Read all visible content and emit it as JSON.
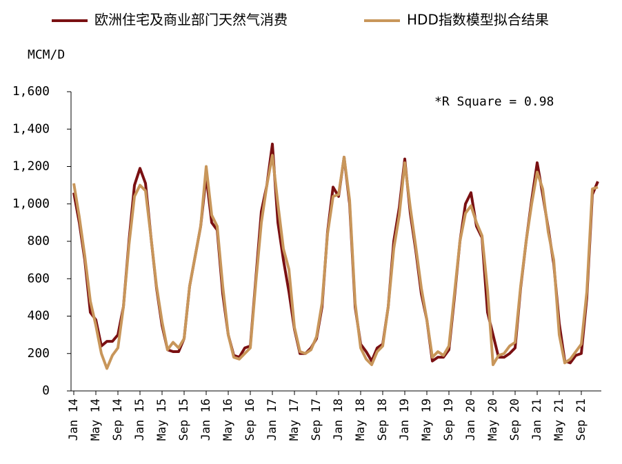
{
  "chart_data": {
    "type": "line",
    "y_label": "MCM/D",
    "annotation": "*R Square = 0.98",
    "categories": [
      "Jan 14",
      null,
      null,
      null,
      "May 14",
      null,
      null,
      null,
      "Sep 14",
      null,
      null,
      null,
      "Jan 15",
      null,
      null,
      null,
      "May 15",
      null,
      null,
      null,
      "Sep 15",
      null,
      null,
      null,
      "Jan 16",
      null,
      null,
      null,
      "May 16",
      null,
      null,
      null,
      "Sep 16",
      null,
      null,
      null,
      "Jan 17",
      null,
      null,
      null,
      "May 17",
      null,
      null,
      null,
      "Sep 17",
      null,
      null,
      null,
      "Jan 18",
      null,
      null,
      null,
      "May 18",
      null,
      null,
      null,
      "Sep 18",
      null,
      null,
      null,
      "Jan 19",
      null,
      null,
      null,
      "May 19",
      null,
      null,
      null,
      "Sep 19",
      null,
      null,
      null,
      "Jan 20",
      null,
      null,
      null,
      "May 20",
      null,
      null,
      null,
      "Sep 20",
      null,
      null,
      null,
      "Jan 21",
      null,
      null,
      null,
      "May 21",
      null,
      null,
      null,
      "Sep 21",
      null,
      null,
      null
    ],
    "series": [
      {
        "name": "欧洲住宅及商业部门天然气消费",
        "color": "#7a1012",
        "values": [
          1060,
          900,
          700,
          420,
          380,
          240,
          265,
          265,
          300,
          450,
          800,
          1100,
          1190,
          1110,
          820,
          550,
          350,
          220,
          210,
          210,
          280,
          560,
          720,
          880,
          1150,
          900,
          860,
          520,
          300,
          190,
          180,
          230,
          240,
          600,
          960,
          1100,
          1320,
          900,
          700,
          530,
          330,
          200,
          200,
          230,
          280,
          450,
          850,
          1090,
          1040,
          1250,
          1000,
          450,
          250,
          210,
          160,
          230,
          250,
          450,
          800,
          980,
          1240,
          950,
          750,
          520,
          380,
          160,
          180,
          180,
          220,
          500,
          800,
          1000,
          1060,
          880,
          820,
          420,
          300,
          180,
          180,
          200,
          230,
          550,
          800,
          1020,
          1220,
          1050,
          870,
          680,
          360,
          160,
          150,
          190,
          200,
          500,
          1050,
          1120
        ]
      },
      {
        "name": "HDD指数模型拟合结果",
        "color": "#c8965a",
        "values": [
          1110,
          930,
          720,
          480,
          350,
          200,
          120,
          190,
          230,
          450,
          780,
          1040,
          1100,
          1070,
          820,
          560,
          370,
          220,
          260,
          230,
          280,
          560,
          720,
          880,
          1200,
          940,
          880,
          560,
          300,
          180,
          170,
          200,
          230,
          580,
          900,
          1100,
          1260,
          1000,
          760,
          650,
          340,
          210,
          200,
          220,
          290,
          470,
          840,
          1040,
          1050,
          1250,
          1020,
          470,
          230,
          170,
          140,
          210,
          240,
          450,
          760,
          940,
          1220,
          980,
          770,
          550,
          380,
          180,
          210,
          190,
          240,
          520,
          800,
          950,
          990,
          900,
          830,
          540,
          140,
          190,
          200,
          240,
          260,
          560,
          800,
          1000,
          1170,
          1080,
          850,
          700,
          300,
          150,
          170,
          210,
          250,
          530,
          1080,
          1090
        ]
      }
    ],
    "ylim": [
      0,
      1600
    ],
    "yticks": [
      0,
      200,
      400,
      600,
      800,
      {
        "value": 1000,
        "label": "1,000"
      },
      {
        "value": 1200,
        "label": "1,200"
      },
      {
        "value": 1400,
        "label": "1,400"
      },
      {
        "value": 1600,
        "label": "1,600"
      }
    ],
    "legend": "top"
  }
}
